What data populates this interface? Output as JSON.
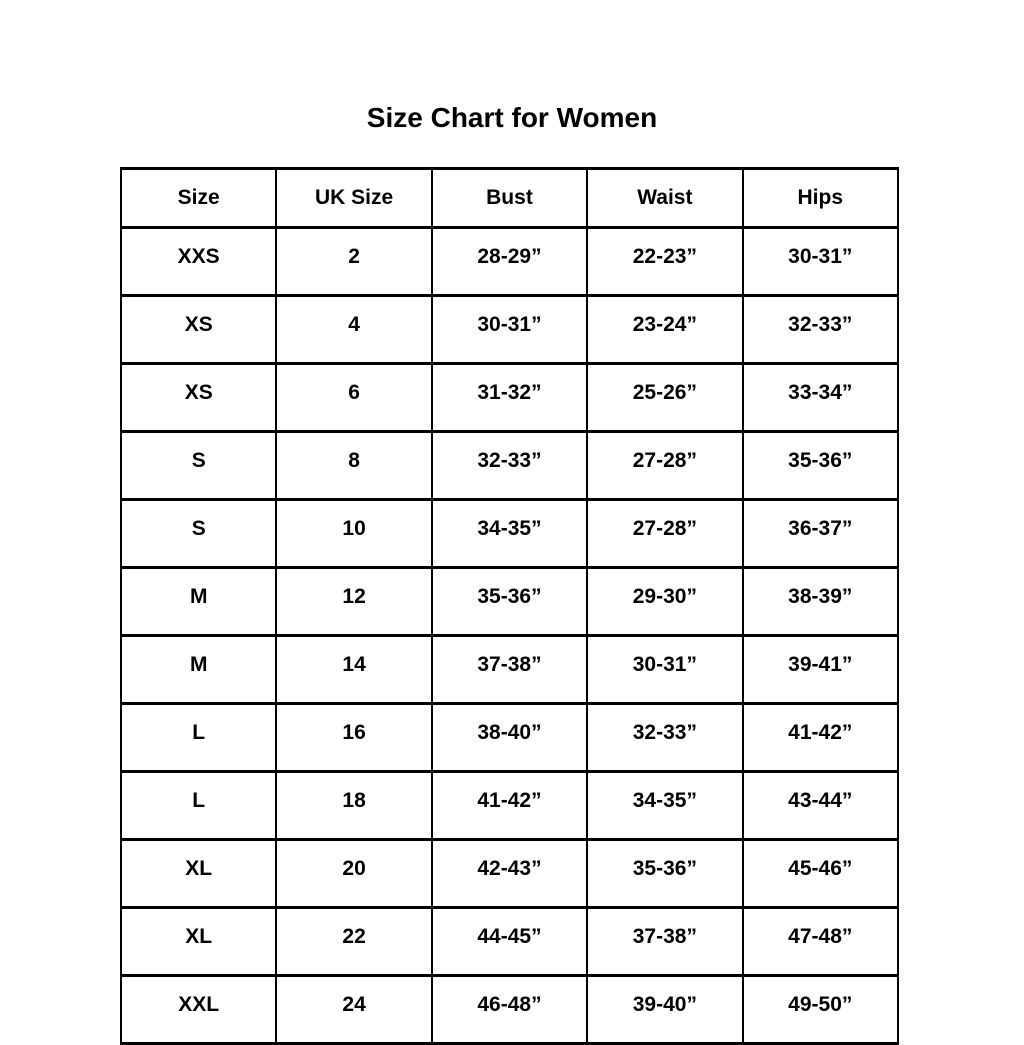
{
  "page": {
    "background_color": "#ffffff",
    "text_color": "#000000",
    "border_color": "#000000"
  },
  "title": "Size Chart for Women",
  "chart_data": {
    "type": "table",
    "title": "Size Chart for Women",
    "columns": [
      "Size",
      "UK Size",
      "Bust",
      "Waist",
      "Hips"
    ],
    "rows": [
      [
        "XXS",
        "2",
        "28-29”",
        "22-23”",
        "30-31”"
      ],
      [
        "XS",
        "4",
        "30-31”",
        "23-24”",
        "32-33”"
      ],
      [
        "XS",
        "6",
        "31-32”",
        "25-26”",
        "33-34”"
      ],
      [
        "S",
        "8",
        "32-33”",
        "27-28”",
        "35-36”"
      ],
      [
        "S",
        "10",
        "34-35”",
        "27-28”",
        "36-37”"
      ],
      [
        "M",
        "12",
        "35-36”",
        "29-30”",
        "38-39”"
      ],
      [
        "M",
        "14",
        "37-38”",
        "30-31”",
        "39-41”"
      ],
      [
        "L",
        "16",
        "38-40”",
        "32-33”",
        "41-42”"
      ],
      [
        "L",
        "18",
        "41-42”",
        "34-35”",
        "43-44”"
      ],
      [
        "XL",
        "20",
        "42-43”",
        "35-36”",
        "45-46”"
      ],
      [
        "XL",
        "22",
        "44-45”",
        "37-38”",
        "47-48”"
      ],
      [
        "XXL",
        "24",
        "46-48”",
        "39-40”",
        "49-50”"
      ]
    ],
    "layout": {
      "grid": true,
      "header_row": true,
      "all_text_bold": true
    }
  }
}
